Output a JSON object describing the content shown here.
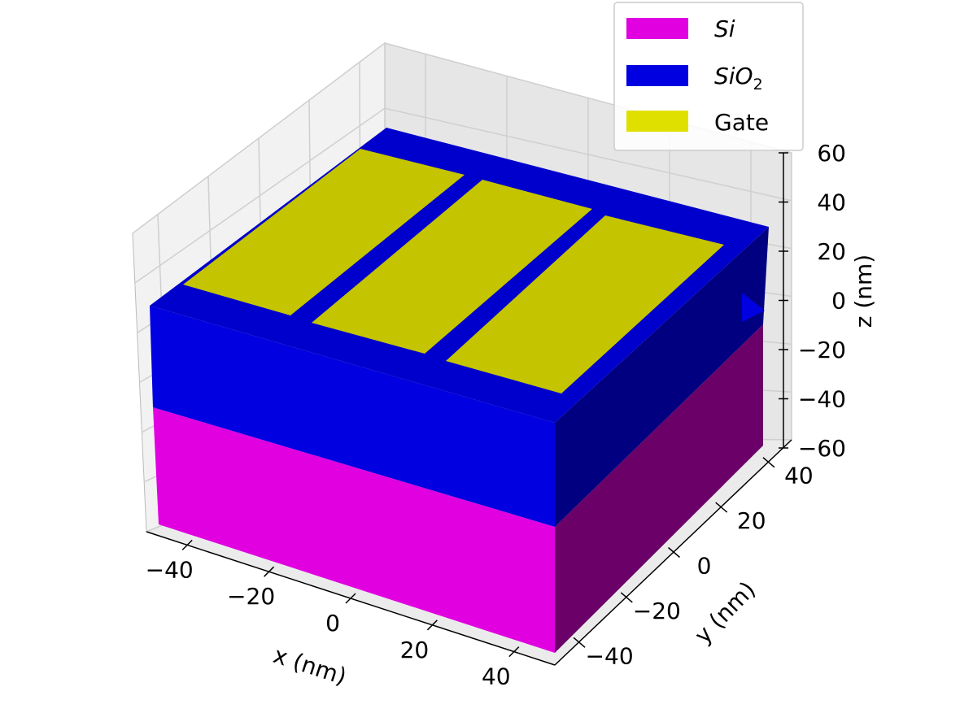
{
  "chart_data": {
    "type": "3d-box",
    "xlabel": "x (nm)",
    "ylabel": "y (nm)",
    "zlabel": "z (nm)",
    "xlim": [
      -50,
      50
    ],
    "ylim": [
      -50,
      50
    ],
    "zlim": [
      -60,
      60
    ],
    "xticks": [
      -40,
      -20,
      0,
      20,
      40
    ],
    "yticks": [
      -40,
      -20,
      0,
      20,
      40
    ],
    "zticks": [
      -60,
      -40,
      -20,
      0,
      20,
      40,
      60
    ],
    "grid": true,
    "legend_position": "top-right",
    "legend": [
      {
        "label": "Si",
        "color": "#e000e0"
      },
      {
        "label": "SiO2",
        "color": "#0000e0"
      },
      {
        "label": "Gate",
        "color": "#e0e000"
      }
    ],
    "regions": [
      {
        "material": "Si",
        "x": [
          -50,
          50
        ],
        "y": [
          -50,
          50
        ],
        "z": [
          -50,
          -20
        ]
      },
      {
        "material": "SiO2",
        "x": [
          -50,
          50
        ],
        "y": [
          -50,
          50
        ],
        "z": [
          -20,
          10
        ]
      },
      {
        "material": "Gate",
        "x": [
          -40,
          -12
        ],
        "y": [
          -50,
          45
        ],
        "z": [
          10,
          10
        ]
      },
      {
        "material": "Gate",
        "x": [
          -8,
          12
        ],
        "y": [
          -50,
          45
        ],
        "z": [
          10,
          10
        ]
      },
      {
        "material": "Gate",
        "x": [
          16,
          44
        ],
        "y": [
          -50,
          45
        ],
        "z": [
          10,
          10
        ]
      }
    ]
  }
}
